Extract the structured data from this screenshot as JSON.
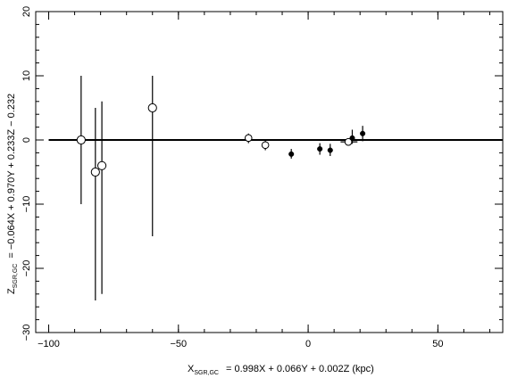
{
  "chart_data": {
    "type": "scatter",
    "title": "",
    "xlabel": {
      "prefix": "X",
      "subscript": "SGR,GC",
      "text": "=   0.998X + 0.066Y + 0.002Z (kpc)"
    },
    "ylabel": {
      "prefix": "Z",
      "subscript": "SGR,GC",
      "text": "= −0.064X + 0.970Y + 0.233Z − 0.232"
    },
    "xlim": [
      -105,
      75
    ],
    "ylim": [
      -30,
      20
    ],
    "xticks": [
      -100,
      -50,
      0,
      50
    ],
    "xtick_labels": [
      "−100",
      "−50",
      "0",
      "50"
    ],
    "yticks": [
      -30,
      -20,
      -10,
      0,
      10,
      20
    ],
    "ytick_labels": [
      "−30",
      "−20",
      "−10",
      "0",
      "10",
      "20"
    ],
    "x_minor_step": 10,
    "y_minor_step": 2,
    "grid": false,
    "reference_line": {
      "y": 0
    },
    "series": [
      {
        "marker": "open-circle",
        "points": [
          {
            "x": -87.5,
            "y": 0.0,
            "yerr_low": -10,
            "yerr_high": 10
          },
          {
            "x": -82.0,
            "y": -5.0,
            "yerr_low": -25,
            "yerr_high": 5
          },
          {
            "x": -79.5,
            "y": -4.0,
            "yerr_low": -24,
            "yerr_high": 6
          },
          {
            "x": -60.0,
            "y": 5.0,
            "yerr_low": -15,
            "yerr_high": 10
          },
          {
            "x": -23.0,
            "y": 0.3,
            "yerr_low": -0.5,
            "yerr_high": 1.0
          },
          {
            "x": -16.5,
            "y": -0.8,
            "yerr_low": -1.6,
            "yerr_high": 0.0
          },
          {
            "x": 15.5,
            "y": -0.3,
            "yerr_low": -0.9,
            "yerr_high": 0.2,
            "xerr_low": 12.5,
            "xerr_high": 19.0
          }
        ]
      },
      {
        "marker": "filled-circle",
        "points": [
          {
            "x": -6.5,
            "y": -2.2,
            "yerr_low": -2.9,
            "yerr_high": -1.4
          },
          {
            "x": 4.5,
            "y": -1.4,
            "yerr_low": -2.3,
            "yerr_high": -0.5
          },
          {
            "x": 8.5,
            "y": -1.6,
            "yerr_low": -2.5,
            "yerr_high": -0.6
          },
          {
            "x": 17.0,
            "y": 0.3,
            "yerr_low": -0.6,
            "yerr_high": 1.6
          },
          {
            "x": 21.0,
            "y": 1.0,
            "yerr_low": -0.2,
            "yerr_high": 2.2
          }
        ]
      }
    ]
  }
}
